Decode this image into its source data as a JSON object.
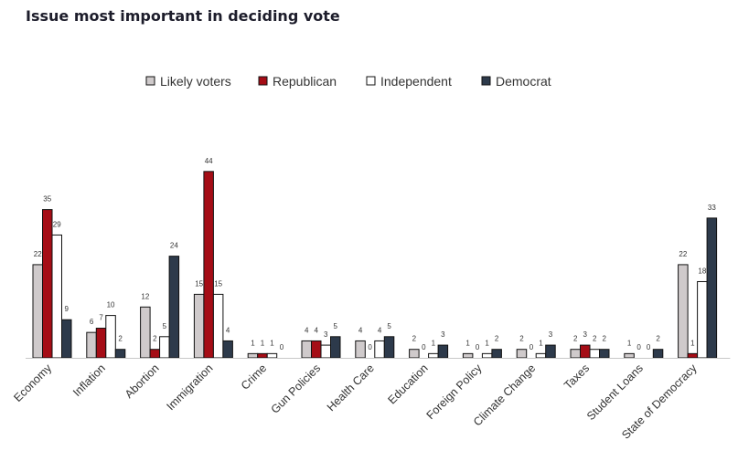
{
  "chart_data": {
    "type": "bar",
    "title": "Issue most important in deciding vote",
    "xlabel": "",
    "ylabel": "",
    "ylim": [
      0,
      44
    ],
    "grid": false,
    "legend_position": "top-center",
    "categories": [
      "Economy",
      "Inflation",
      "Abortion",
      "Immigration",
      "Crime",
      "Gun Policies",
      "Health Care",
      "Education",
      "Foreign Policy",
      "Climate Change",
      "Taxes",
      "Student Loans",
      "State of Democracy"
    ],
    "series": [
      {
        "name": "Likely voters",
        "color": "#cfcacb",
        "values": [
          22,
          6,
          12,
          15,
          1,
          4,
          4,
          2,
          1,
          2,
          2,
          1,
          22
        ]
      },
      {
        "name": "Republican",
        "color": "#a50d16",
        "values": [
          35,
          7,
          2,
          44,
          1,
          4,
          0,
          0,
          0,
          0,
          3,
          0,
          1
        ]
      },
      {
        "name": "Independent",
        "color": "#ffffff",
        "values": [
          29,
          10,
          5,
          15,
          1,
          3,
          4,
          1,
          1,
          1,
          2,
          0,
          18
        ]
      },
      {
        "name": "Democrat",
        "color": "#2d3a4b",
        "values": [
          9,
          2,
          24,
          4,
          0,
          5,
          5,
          3,
          2,
          3,
          2,
          2,
          33
        ]
      }
    ]
  }
}
